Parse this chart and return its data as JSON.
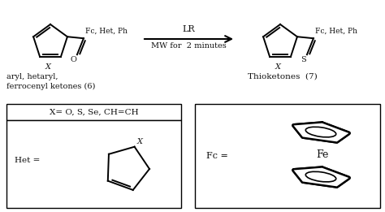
{
  "bg_color": "#ffffff",
  "text_color": "#111111",
  "arrow_label_top": "LR",
  "arrow_label_bottom": "MW for  2 minutes",
  "label_reactant": "aryl, hetaryl,\nferrocenyl ketones (6)",
  "label_product": "Thioketones  (7)",
  "label_fc_het_ph_left": "Fc, Het, Ph",
  "label_fc_het_ph_right": "Fc, Het, Ph",
  "label_X_box": "X= O, S, Se, CH=CH",
  "label_Het": "Het =",
  "label_Fc": "Fc =",
  "label_Fe": "Fe",
  "label_X_left": "X",
  "label_X_right": "X",
  "label_O": "O",
  "label_S": "S"
}
